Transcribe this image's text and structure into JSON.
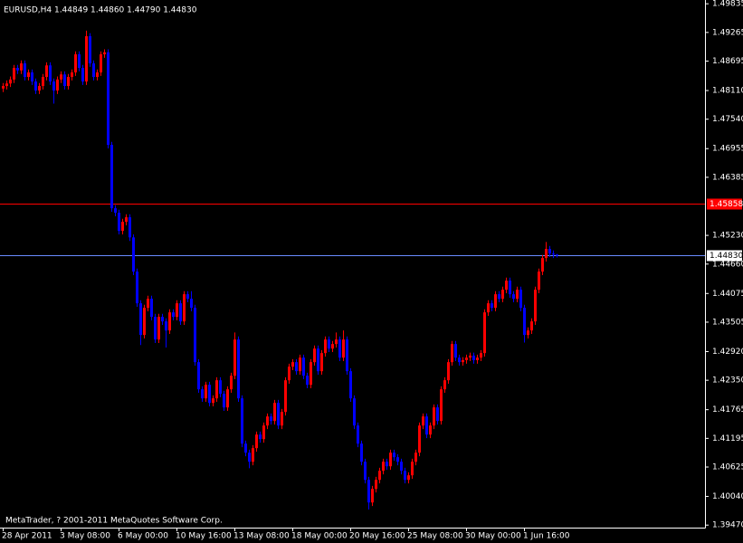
{
  "chart_data": {
    "type": "candlestick",
    "header": "EURUSD,H4  1.44849 1.44860 1.44790 1.44830",
    "footer": "MetaTrader, ? 2001-2011 MetaQuotes Software Corp.",
    "up_color": "#ff0000",
    "down_color": "#0000ff",
    "ylim": [
      1.3942,
      1.4991
    ],
    "yticks": [
      1.49835,
      1.49265,
      1.48695,
      {
        "value": 1.4811,
        "label": "1.48110"
      },
      {
        "value": 1.4754,
        "label": "1.47540"
      },
      1.46955,
      1.46385,
      {
        "value": 1.4523,
        "label": "1.45230"
      },
      {
        "value": 1.4466,
        "label": "1.44660"
      },
      1.44075,
      1.43505,
      {
        "value": 1.4292,
        "label": "1.42920"
      },
      {
        "value": 1.4235,
        "label": "1.42350"
      },
      1.41765,
      1.41195,
      1.40625,
      {
        "value": 1.4004,
        "label": "1.40040"
      },
      {
        "value": 1.3947,
        "label": "1.39470"
      }
    ],
    "hlines": [
      {
        "value": 1.45858,
        "label": "1.45858",
        "color": "#ff0000"
      },
      {
        "value": 1.4483,
        "label": "1.44830",
        "color": "#6a8cff"
      }
    ],
    "categories": [
      "28 Apr 2011",
      null,
      null,
      null,
      null,
      null,
      null,
      null,
      null,
      null,
      null,
      null,
      null,
      null,
      null,
      null,
      "3 May 08:00",
      null,
      null,
      null,
      null,
      null,
      null,
      null,
      null,
      null,
      null,
      null,
      null,
      null,
      null,
      null,
      "6 May 00:00",
      null,
      null,
      null,
      null,
      null,
      null,
      null,
      null,
      null,
      null,
      null,
      null,
      null,
      null,
      null,
      "10 May 16:00",
      null,
      null,
      null,
      null,
      null,
      null,
      null,
      null,
      null,
      null,
      null,
      null,
      null,
      null,
      null,
      "13 May 08:00",
      null,
      null,
      null,
      null,
      null,
      null,
      null,
      null,
      null,
      null,
      null,
      null,
      null,
      null,
      null,
      "18 May 00:00",
      null,
      null,
      null,
      null,
      null,
      null,
      null,
      null,
      null,
      null,
      null,
      null,
      null,
      null,
      null,
      "20 May 16:00",
      null,
      null,
      null,
      null,
      null,
      null,
      null,
      null,
      null,
      null,
      null,
      null,
      null,
      null,
      null,
      "25 May 08:00",
      null,
      null,
      null,
      null,
      null,
      null,
      null,
      null,
      null,
      null,
      null,
      null,
      null,
      null,
      null,
      "30 May 00:00",
      null,
      null,
      null,
      null,
      null,
      null,
      null,
      null,
      null,
      null,
      null,
      null,
      null,
      null,
      null,
      "1 Jun 16:00",
      null,
      null,
      null,
      null,
      null,
      null,
      null,
      null,
      null
    ],
    "candles": [
      [
        1.4815,
        1.4826,
        1.4808,
        1.482
      ],
      [
        1.482,
        1.4831,
        1.4813,
        1.4825
      ],
      [
        1.4825,
        1.4839,
        1.4818,
        1.4833
      ],
      [
        1.4833,
        1.4862,
        1.4826,
        1.4856
      ],
      [
        1.4856,
        1.4862,
        1.4844,
        1.4851
      ],
      [
        1.4851,
        1.4871,
        1.4844,
        1.4865
      ],
      [
        1.4865,
        1.4871,
        1.4831,
        1.4838
      ],
      [
        1.4838,
        1.4853,
        1.4831,
        1.4847
      ],
      [
        1.4847,
        1.4853,
        1.4822,
        1.4829
      ],
      [
        1.4829,
        1.4835,
        1.4804,
        1.4811
      ],
      [
        1.4811,
        1.4826,
        1.4804,
        1.482
      ],
      [
        1.482,
        1.4844,
        1.4813,
        1.4838
      ],
      [
        1.4838,
        1.4867,
        1.4831,
        1.4861
      ],
      [
        1.4861,
        1.4867,
        1.4822,
        1.4829
      ],
      [
        1.4829,
        1.4835,
        1.4785,
        1.4811
      ],
      [
        1.4811,
        1.4839,
        1.4804,
        1.4833
      ],
      [
        1.4833,
        1.4849,
        1.4826,
        1.4843
      ],
      [
        1.4843,
        1.4849,
        1.4813,
        1.482
      ],
      [
        1.482,
        1.4844,
        1.4813,
        1.4838
      ],
      [
        1.4838,
        1.4853,
        1.4831,
        1.4847
      ],
      [
        1.4847,
        1.4889,
        1.484,
        1.4883
      ],
      [
        1.4883,
        1.4889,
        1.4849,
        1.4856
      ],
      [
        1.4856,
        1.4862,
        1.4822,
        1.4829
      ],
      [
        1.4829,
        1.493,
        1.4822,
        1.4919
      ],
      [
        1.4919,
        1.4925,
        1.4858,
        1.4865
      ],
      [
        1.4865,
        1.4871,
        1.4831,
        1.4838
      ],
      [
        1.4838,
        1.4853,
        1.4831,
        1.4847
      ],
      [
        1.4847,
        1.4889,
        1.484,
        1.4883
      ],
      [
        1.4883,
        1.4893,
        1.4876,
        1.4887
      ],
      [
        1.4887,
        1.4893,
        1.4696,
        1.4703
      ],
      [
        1.4703,
        1.4709,
        1.457,
        1.4577
      ],
      [
        1.4577,
        1.4583,
        1.4561,
        1.4568
      ],
      [
        1.4568,
        1.4574,
        1.4525,
        1.4532
      ],
      [
        1.4532,
        1.4556,
        1.4525,
        1.455
      ],
      [
        1.455,
        1.4565,
        1.4543,
        1.4559
      ],
      [
        1.4559,
        1.4565,
        1.4512,
        1.4519
      ],
      [
        1.4519,
        1.4525,
        1.4444,
        1.4451
      ],
      [
        1.4451,
        1.4457,
        1.4381,
        1.4388
      ],
      [
        1.4388,
        1.4394,
        1.4305,
        1.4325
      ],
      [
        1.4325,
        1.4385,
        1.4318,
        1.4379
      ],
      [
        1.4379,
        1.4403,
        1.4372,
        1.4397
      ],
      [
        1.4397,
        1.4403,
        1.4354,
        1.4361
      ],
      [
        1.4361,
        1.4367,
        1.4309,
        1.4316
      ],
      [
        1.4316,
        1.4367,
        1.4309,
        1.4361
      ],
      [
        1.4361,
        1.4367,
        1.4345,
        1.4352
      ],
      [
        1.4352,
        1.4358,
        1.43,
        1.4334
      ],
      [
        1.4334,
        1.4376,
        1.4327,
        1.437
      ],
      [
        1.437,
        1.4376,
        1.4354,
        1.4361
      ],
      [
        1.4361,
        1.4394,
        1.4354,
        1.4388
      ],
      [
        1.4388,
        1.4394,
        1.4345,
        1.4352
      ],
      [
        1.4352,
        1.4412,
        1.4345,
        1.4406
      ],
      [
        1.4406,
        1.4412,
        1.439,
        1.4397
      ],
      [
        1.4397,
        1.4412,
        1.4372,
        1.4379
      ],
      [
        1.4379,
        1.4385,
        1.4264,
        1.4271
      ],
      [
        1.4271,
        1.4277,
        1.421,
        1.4217
      ],
      [
        1.4217,
        1.4223,
        1.4192,
        1.4199
      ],
      [
        1.4199,
        1.4232,
        1.4192,
        1.4226
      ],
      [
        1.4226,
        1.4232,
        1.4183,
        1.419
      ],
      [
        1.419,
        1.4205,
        1.4183,
        1.4199
      ],
      [
        1.4199,
        1.4241,
        1.4192,
        1.4235
      ],
      [
        1.4235,
        1.4241,
        1.4201,
        1.4208
      ],
      [
        1.4208,
        1.4214,
        1.4174,
        1.4181
      ],
      [
        1.4181,
        1.4223,
        1.4174,
        1.4217
      ],
      [
        1.4217,
        1.425,
        1.421,
        1.4244
      ],
      [
        1.4244,
        1.433,
        1.4237,
        1.4316
      ],
      [
        1.4316,
        1.4322,
        1.4192,
        1.4199
      ],
      [
        1.4199,
        1.4205,
        1.4102,
        1.4109
      ],
      [
        1.4109,
        1.4115,
        1.4084,
        1.4091
      ],
      [
        1.4091,
        1.4097,
        1.406,
        1.4073
      ],
      [
        1.4073,
        1.4106,
        1.4066,
        1.41
      ],
      [
        1.41,
        1.4133,
        1.4093,
        1.4127
      ],
      [
        1.4127,
        1.4133,
        1.4111,
        1.4118
      ],
      [
        1.4118,
        1.4151,
        1.4111,
        1.4145
      ],
      [
        1.4145,
        1.4169,
        1.4138,
        1.4163
      ],
      [
        1.4163,
        1.4169,
        1.4147,
        1.4154
      ],
      [
        1.4154,
        1.4196,
        1.4147,
        1.419
      ],
      [
        1.419,
        1.4196,
        1.4138,
        1.4145
      ],
      [
        1.4145,
        1.4178,
        1.4138,
        1.4172
      ],
      [
        1.4172,
        1.4241,
        1.4165,
        1.4235
      ],
      [
        1.4235,
        1.4268,
        1.4228,
        1.4262
      ],
      [
        1.4262,
        1.4277,
        1.4255,
        1.4271
      ],
      [
        1.4271,
        1.4277,
        1.4246,
        1.4253
      ],
      [
        1.4253,
        1.4286,
        1.4246,
        1.428
      ],
      [
        1.428,
        1.4286,
        1.4237,
        1.4244
      ],
      [
        1.4244,
        1.425,
        1.4219,
        1.4226
      ],
      [
        1.4226,
        1.4277,
        1.4219,
        1.4271
      ],
      [
        1.4271,
        1.4304,
        1.4264,
        1.4298
      ],
      [
        1.4298,
        1.4304,
        1.4246,
        1.4253
      ],
      [
        1.4253,
        1.4295,
        1.4246,
        1.4289
      ],
      [
        1.4289,
        1.4322,
        1.4282,
        1.4316
      ],
      [
        1.4316,
        1.4322,
        1.4291,
        1.4298
      ],
      [
        1.4298,
        1.4313,
        1.4291,
        1.4307
      ],
      [
        1.4307,
        1.433,
        1.43,
        1.4316
      ],
      [
        1.4316,
        1.4322,
        1.4273,
        1.428
      ],
      [
        1.428,
        1.4334,
        1.4273,
        1.4316
      ],
      [
        1.4316,
        1.4322,
        1.4246,
        1.4253
      ],
      [
        1.4253,
        1.4259,
        1.4192,
        1.4199
      ],
      [
        1.4199,
        1.4205,
        1.4138,
        1.4145
      ],
      [
        1.4145,
        1.4151,
        1.4102,
        1.4109
      ],
      [
        1.4109,
        1.4115,
        1.4066,
        1.4073
      ],
      [
        1.4073,
        1.4079,
        1.403,
        1.4037
      ],
      [
        1.4037,
        1.4043,
        1.3978,
        1.3992
      ],
      [
        1.3992,
        1.4025,
        1.3985,
        1.4019
      ],
      [
        1.4019,
        1.4043,
        1.4012,
        1.4037
      ],
      [
        1.4037,
        1.4061,
        1.403,
        1.4055
      ],
      [
        1.4055,
        1.4079,
        1.4048,
        1.4073
      ],
      [
        1.4073,
        1.4079,
        1.4057,
        1.4064
      ],
      [
        1.4064,
        1.4097,
        1.4057,
        1.4091
      ],
      [
        1.4091,
        1.4097,
        1.4075,
        1.4082
      ],
      [
        1.4082,
        1.4088,
        1.4066,
        1.4073
      ],
      [
        1.4073,
        1.4079,
        1.4048,
        1.4055
      ],
      [
        1.4055,
        1.4061,
        1.403,
        1.4037
      ],
      [
        1.4037,
        1.4052,
        1.403,
        1.4046
      ],
      [
        1.4046,
        1.4079,
        1.4039,
        1.4073
      ],
      [
        1.4073,
        1.4097,
        1.4066,
        1.4091
      ],
      [
        1.4091,
        1.4151,
        1.4084,
        1.4145
      ],
      [
        1.4145,
        1.4169,
        1.4138,
        1.4163
      ],
      [
        1.4163,
        1.4169,
        1.412,
        1.4127
      ],
      [
        1.4127,
        1.4151,
        1.412,
        1.4145
      ],
      [
        1.4145,
        1.4187,
        1.4138,
        1.4181
      ],
      [
        1.4181,
        1.4187,
        1.4147,
        1.4154
      ],
      [
        1.4154,
        1.4223,
        1.4147,
        1.4217
      ],
      [
        1.4217,
        1.4241,
        1.421,
        1.4235
      ],
      [
        1.4235,
        1.4277,
        1.4228,
        1.4271
      ],
      [
        1.4271,
        1.4313,
        1.4264,
        1.4307
      ],
      [
        1.4307,
        1.4313,
        1.4273,
        1.428
      ],
      [
        1.428,
        1.4286,
        1.4264,
        1.4271
      ],
      [
        1.4271,
        1.4281,
        1.4264,
        1.4275
      ],
      [
        1.4275,
        1.4286,
        1.4268,
        1.428
      ],
      [
        1.428,
        1.429,
        1.4273,
        1.4284
      ],
      [
        1.4284,
        1.429,
        1.4268,
        1.4275
      ],
      [
        1.4275,
        1.4286,
        1.4268,
        1.428
      ],
      [
        1.428,
        1.4295,
        1.4273,
        1.4289
      ],
      [
        1.4289,
        1.4376,
        1.4282,
        1.437
      ],
      [
        1.437,
        1.4394,
        1.4363,
        1.4388
      ],
      [
        1.4388,
        1.4394,
        1.4372,
        1.4379
      ],
      [
        1.4379,
        1.4412,
        1.4372,
        1.4406
      ],
      [
        1.4406,
        1.4412,
        1.439,
        1.4397
      ],
      [
        1.4397,
        1.4421,
        1.439,
        1.4415
      ],
      [
        1.4415,
        1.4439,
        1.4408,
        1.4433
      ],
      [
        1.4433,
        1.4439,
        1.4399,
        1.4406
      ],
      [
        1.4406,
        1.4412,
        1.439,
        1.4397
      ],
      [
        1.4397,
        1.4421,
        1.439,
        1.4415
      ],
      [
        1.4415,
        1.4421,
        1.4372,
        1.4379
      ],
      [
        1.4379,
        1.4385,
        1.431,
        1.4325
      ],
      [
        1.4325,
        1.434,
        1.4318,
        1.4334
      ],
      [
        1.4334,
        1.4358,
        1.4327,
        1.4352
      ],
      [
        1.4352,
        1.4421,
        1.4345,
        1.4415
      ],
      [
        1.4415,
        1.4457,
        1.4408,
        1.4451
      ],
      [
        1.4451,
        1.4484,
        1.4444,
        1.4478
      ],
      [
        1.4478,
        1.451,
        1.4471,
        1.4496
      ],
      [
        1.4496,
        1.4502,
        1.448,
        1.4487
      ],
      [
        1.4487,
        1.4493,
        1.4478,
        1.4485
      ],
      [
        1.44849,
        1.4486,
        1.4479,
        1.4483
      ]
    ]
  }
}
